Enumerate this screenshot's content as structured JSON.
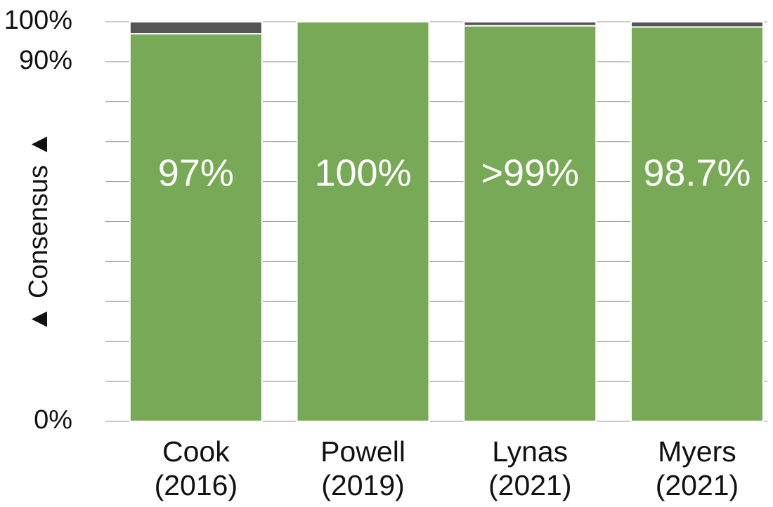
{
  "chart_data": {
    "type": "stacked_bar",
    "y_label": "▲ Consensus ▲",
    "categories": [
      [
        "Cook",
        "(2016)"
      ],
      [
        "Powell",
        "(2019)"
      ],
      [
        "Lynas",
        "(2021)"
      ],
      [
        "Myers",
        "(2021)"
      ]
    ],
    "series": [
      {
        "color": "#77a956",
        "values": [
          97,
          100,
          99,
          98.7
        ],
        "value_labels": [
          "97%",
          "100%",
          ">99%",
          "98.7%"
        ]
      },
      {
        "color": "#555555",
        "values": [
          3,
          0,
          1,
          1.3
        ]
      }
    ],
    "ylim": [
      0,
      100
    ],
    "yticks": [
      {
        "value": 0,
        "label": "0%"
      },
      10,
      20,
      30,
      40,
      50,
      60,
      70,
      80,
      {
        "value": 90,
        "label": "90%"
      },
      {
        "value": 100,
        "label": "100%"
      }
    ],
    "grid": true
  }
}
